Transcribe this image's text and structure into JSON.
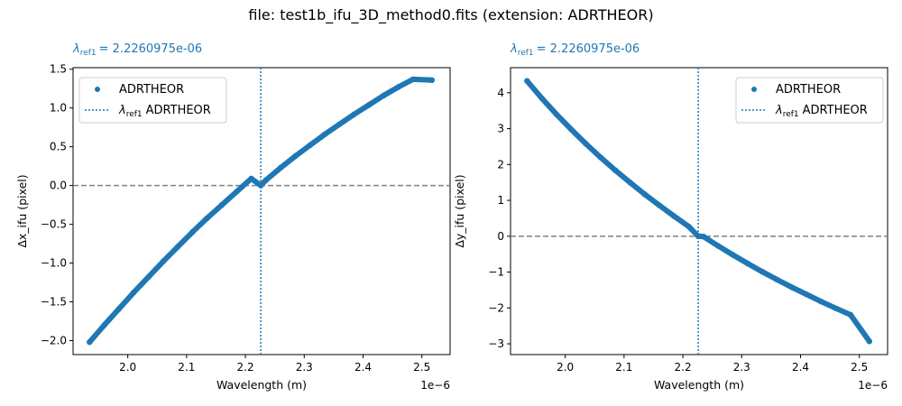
{
  "figure": {
    "suptitle": "file: test1b_ifu_3D_method0.fits (extension: ADRTHEOR)",
    "colors": {
      "series": "#1f77b4",
      "zero_line": "#808080",
      "axes": "#000000"
    }
  },
  "chart_data": [
    {
      "type": "scatter",
      "ref_annotation": {
        "symbol": "λ",
        "subscript": "ref1",
        "value_text": "= 2.2260975e-06"
      },
      "xlabel": "Wavelength (m)",
      "ylabel": "Δx_ifu (pixel)",
      "x_offset_text": "1e−6",
      "xlim": [
        1.907,
        2.548
      ],
      "ylim": [
        -2.18,
        1.52
      ],
      "xticks": [
        2.0,
        2.1,
        2.2,
        2.3,
        2.4,
        2.5
      ],
      "xtick_labels": [
        "2.0",
        "2.1",
        "2.2",
        "2.3",
        "2.4",
        "2.5"
      ],
      "yticks": [
        -2.0,
        -1.5,
        -1.0,
        -0.5,
        0.0,
        0.5,
        1.0,
        1.5
      ],
      "ytick_labels": [
        "−2.0",
        "−1.5",
        "−1.0",
        "−0.5",
        "0.0",
        "0.5",
        "1.0",
        "1.5"
      ],
      "reference_x": 2.2260975,
      "zero_line_y": 0.0,
      "legend": {
        "placement": "upper-left",
        "entries": [
          "ADRTHEOR",
          "λref1 ADRTHEOR"
        ],
        "entry_label_suffix": "ADRTHEOR"
      },
      "series": [
        {
          "name": "ADRTHEOR",
          "x": [
            1.935,
            1.96,
            1.985,
            2.01,
            2.035,
            2.06,
            2.085,
            2.11,
            2.135,
            2.16,
            2.185,
            2.21,
            2.2261,
            2.235,
            2.26,
            2.285,
            2.31,
            2.335,
            2.36,
            2.385,
            2.41,
            2.435,
            2.46,
            2.485,
            2.517
          ],
          "y": [
            -2.02,
            -1.8,
            -1.59,
            -1.38,
            -1.18,
            -0.98,
            -0.79,
            -0.6,
            -0.42,
            -0.25,
            -0.08,
            0.09,
            0.0,
            0.07,
            0.23,
            0.38,
            0.52,
            0.66,
            0.79,
            0.92,
            1.04,
            1.16,
            1.27,
            1.37,
            1.36
          ]
        }
      ]
    },
    {
      "type": "scatter",
      "ref_annotation": {
        "symbol": "λ",
        "subscript": "ref1",
        "value_text": "= 2.2260975e-06"
      },
      "xlabel": "Wavelength (m)",
      "ylabel": "Δy_ifu (pixel)",
      "x_offset_text": "1e−6",
      "xlim": [
        1.907,
        2.548
      ],
      "ylim": [
        -3.3,
        4.7
      ],
      "xticks": [
        2.0,
        2.1,
        2.2,
        2.3,
        2.4,
        2.5
      ],
      "xtick_labels": [
        "2.0",
        "2.1",
        "2.2",
        "2.3",
        "2.4",
        "2.5"
      ],
      "yticks": [
        -3,
        -2,
        -1,
        0,
        1,
        2,
        3,
        4
      ],
      "ytick_labels": [
        "−3",
        "−2",
        "−1",
        "0",
        "1",
        "2",
        "3",
        "4"
      ],
      "reference_x": 2.2260975,
      "zero_line_y": 0.0,
      "legend": {
        "placement": "upper-right",
        "entries": [
          "ADRTHEOR",
          "λref1 ADRTHEOR"
        ],
        "entry_label_suffix": "ADRTHEOR"
      },
      "series": [
        {
          "name": "ADRTHEOR",
          "x": [
            1.935,
            1.96,
            1.985,
            2.01,
            2.035,
            2.06,
            2.085,
            2.11,
            2.135,
            2.16,
            2.185,
            2.21,
            2.2261,
            2.235,
            2.26,
            2.285,
            2.31,
            2.335,
            2.36,
            2.385,
            2.41,
            2.435,
            2.46,
            2.485,
            2.517
          ],
          "y": [
            4.33,
            3.85,
            3.4,
            2.98,
            2.58,
            2.2,
            1.84,
            1.5,
            1.17,
            0.86,
            0.56,
            0.27,
            0.0,
            -0.01,
            -0.27,
            -0.52,
            -0.76,
            -0.99,
            -1.21,
            -1.42,
            -1.62,
            -1.82,
            -2.01,
            -2.19,
            -2.93
          ]
        }
      ]
    }
  ]
}
